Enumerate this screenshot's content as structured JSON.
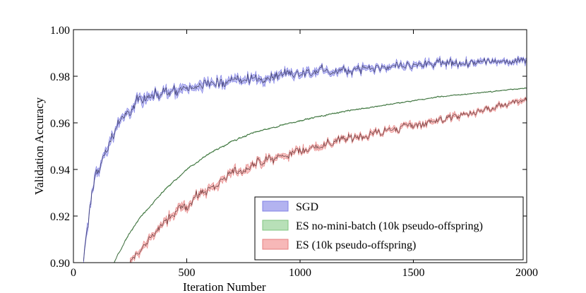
{
  "chart_data": {
    "type": "line",
    "title": "",
    "xlabel": "Iteration Number",
    "ylabel": "Validation Accuracy",
    "xlim": [
      0,
      2000
    ],
    "ylim": [
      0.9,
      1.0
    ],
    "x_ticks": [
      0,
      500,
      1000,
      1500,
      2000
    ],
    "x_tick_labels": [
      "0",
      "500",
      "1000",
      "1500",
      "2000"
    ],
    "y_ticks": [
      0.9,
      0.92,
      0.94,
      0.96,
      0.98,
      1.0
    ],
    "y_tick_labels": [
      "0.90",
      "0.92",
      "0.94",
      "0.96",
      "0.98",
      "1.00"
    ],
    "legend_position": "lower-right",
    "series": [
      {
        "name": "SGD",
        "fill_color": "#b3b3f0",
        "band_color": "#8080e6",
        "line_color": "#33335a",
        "noise": 0.006,
        "x": [
          45,
          60,
          80,
          100,
          130,
          160,
          200,
          250,
          300,
          400,
          500,
          600,
          700,
          800,
          1000,
          1200,
          1400,
          1600,
          1800,
          2000
        ],
        "y": [
          0.9,
          0.915,
          0.928,
          0.938,
          0.946,
          0.952,
          0.96,
          0.966,
          0.97,
          0.973,
          0.975,
          0.977,
          0.978,
          0.979,
          0.981,
          0.983,
          0.984,
          0.985,
          0.986,
          0.987
        ]
      },
      {
        "name": "ES no-mini-batch (10k pseudo-offspring)",
        "fill_color": "#b8e0b8",
        "band_color": "#7fc47f",
        "line_color": "#2a4a2a",
        "noise": 0.0008,
        "x": [
          180,
          200,
          250,
          300,
          400,
          500,
          600,
          700,
          800,
          1000,
          1200,
          1400,
          1600,
          1800,
          2000
        ],
        "y": [
          0.9,
          0.904,
          0.913,
          0.92,
          0.931,
          0.94,
          0.947,
          0.952,
          0.956,
          0.961,
          0.965,
          0.968,
          0.971,
          0.973,
          0.975
        ]
      },
      {
        "name": "ES (10k pseudo-offspring)",
        "fill_color": "#f7b8b8",
        "band_color": "#e68080",
        "line_color": "#5a3030",
        "noise": 0.005,
        "x": [
          250,
          300,
          350,
          400,
          500,
          600,
          700,
          800,
          1000,
          1200,
          1400,
          1600,
          1800,
          2000
        ],
        "y": [
          0.9,
          0.906,
          0.912,
          0.917,
          0.925,
          0.932,
          0.938,
          0.942,
          0.948,
          0.953,
          0.957,
          0.961,
          0.965,
          0.97
        ]
      }
    ]
  }
}
